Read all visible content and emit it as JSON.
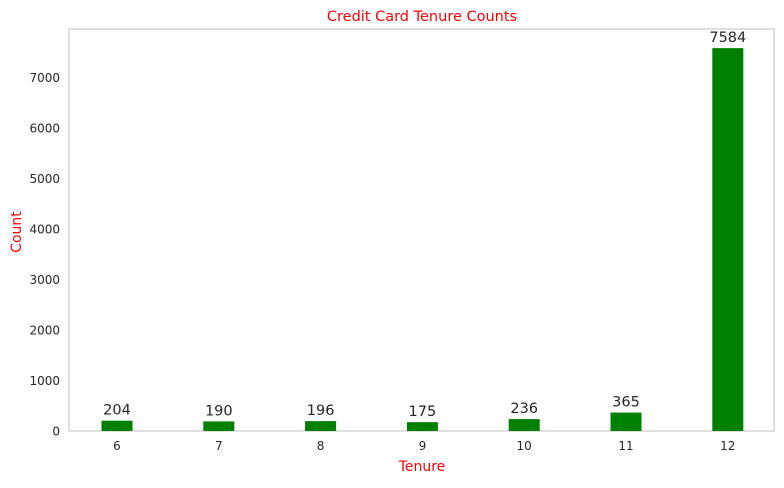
{
  "chart_data": {
    "type": "bar",
    "title": "Credit Card Tenure Counts",
    "xlabel": "Tenure",
    "ylabel": "Count",
    "categories": [
      "6",
      "7",
      "8",
      "9",
      "10",
      "11",
      "12"
    ],
    "values": [
      204,
      190,
      196,
      175,
      236,
      365,
      7584
    ],
    "data_labels": [
      "204",
      "190",
      "196",
      "175",
      "236",
      "365",
      "7584"
    ],
    "ylim": [
      0,
      7963
    ],
    "yticks": [
      0,
      1000,
      2000,
      3000,
      4000,
      5000,
      6000,
      7000
    ],
    "ytick_labels": [
      "0",
      "1000",
      "2000",
      "3000",
      "4000",
      "5000",
      "6000",
      "7000"
    ],
    "grid": false,
    "bar_color": "#008000",
    "title_color": "#ff0000",
    "axis_label_color": "#ff0000",
    "text_color": "#262626",
    "spine_color": "#cccccc"
  }
}
